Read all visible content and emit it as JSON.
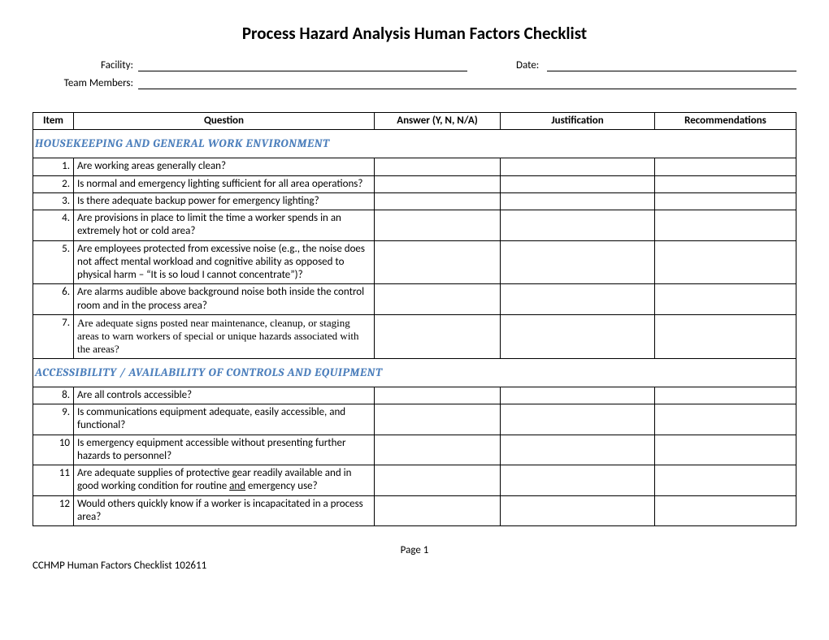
{
  "title": "Process Hazard Analysis Human Factors Checklist",
  "labels": {
    "facility": "Facility:",
    "date": "Date:",
    "team": "Team Members:"
  },
  "columns": {
    "item": "Item",
    "question": "Question",
    "answer": "Answer (Y, N, N/A)",
    "justification": "Justification",
    "recommendations": "Recommendations"
  },
  "sections": {
    "s1": "HOUSEKEEPING AND GENERAL WORK ENVIRONMENT",
    "s2": "ACCESSIBILITY / AVAILABILITY OF CONTROLS AND EQUIPMENT"
  },
  "rows": {
    "r1": {
      "n": "1.",
      "q": "Are working areas generally clean?"
    },
    "r2": {
      "n": "2.",
      "q": "Is normal and emergency lighting sufficient for all area operations?"
    },
    "r3": {
      "n": "3.",
      "q": "Is there adequate backup power for emergency lighting?"
    },
    "r4": {
      "n": "4.",
      "q": "Are provisions in place to limit the time a worker spends in an extremely hot or cold area?"
    },
    "r5": {
      "n": "5.",
      "q": "Are employees protected from excessive noise (e.g., the noise does not affect mental workload and cognitive ability as opposed to physical harm – “It is so loud I cannot concentrate”)?"
    },
    "r6": {
      "n": "6.",
      "q": "Are alarms audible above background noise both inside the control room and in the process area?"
    },
    "r7": {
      "n": "7.",
      "q": "Are adequate signs posted near maintenance, cleanup, or staging areas to warn workers of special or unique hazards associated with the areas?"
    },
    "r8": {
      "n": "8.",
      "q": "Are all controls accessible?"
    },
    "r9": {
      "n": "9.",
      "q": "Is communications equipment adequate, easily accessible, and functional?"
    },
    "r10": {
      "n": "10",
      "q": "Is emergency equipment accessible without presenting further hazards to personnel?"
    },
    "r11a": "Are adequate supplies of protective gear readily available and in good working condition for routine ",
    "r11u": "and",
    "r11b": " emergency use?",
    "r11n": "11",
    "r12": {
      "n": "12",
      "q": "Would others quickly know if a worker is incapacitated in a process area?"
    }
  },
  "footer": {
    "page": "Page 1",
    "docid": "CCHMP Human Factors Checklist 102611"
  },
  "colors": {
    "section_heading": "#4f81bd",
    "border": "#000000",
    "text": "#000000",
    "background": "#ffffff"
  }
}
